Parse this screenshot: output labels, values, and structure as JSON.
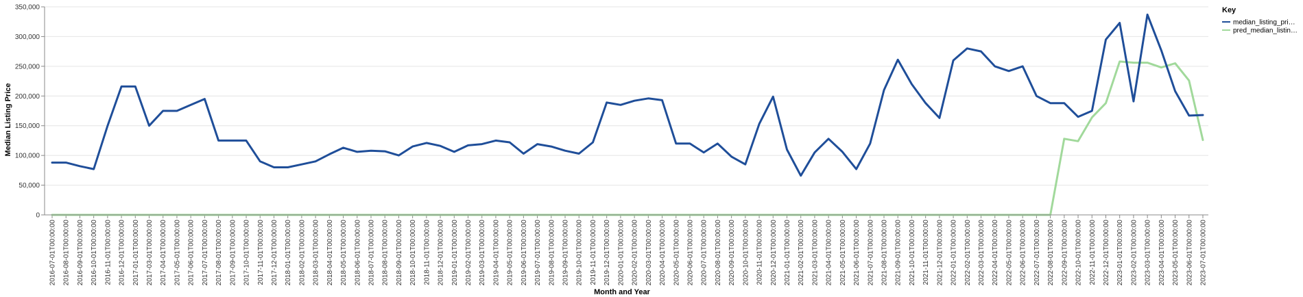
{
  "chart_data": {
    "type": "line",
    "xlabel": "Month and Year",
    "ylabel": "Median Listing Price",
    "ylim": [
      0,
      350000
    ],
    "yticks": [
      "0",
      "50,000",
      "100,000",
      "150,000",
      "200,000",
      "250,000",
      "300,000",
      "350,000"
    ],
    "grid": true,
    "legend": {
      "title": "Key",
      "placement": "top-right"
    },
    "categories": [
      "2016-07-01T00:00:00",
      "2016-08-01T00:00:00",
      "2016-09-01T00:00:00",
      "2016-10-01T00:00:00",
      "2016-11-01T00:00:00",
      "2016-12-01T00:00:00",
      "2017-01-01T00:00:00",
      "2017-03-01T00:00:00",
      "2017-04-01T00:00:00",
      "2017-05-01T00:00:00",
      "2017-06-01T00:00:00",
      "2017-07-01T00:00:00",
      "2017-08-01T00:00:00",
      "2017-09-01T00:00:00",
      "2017-10-01T00:00:00",
      "2017-11-01T00:00:00",
      "2017-12-01T00:00:00",
      "2018-01-01T00:00:00",
      "2018-02-01T00:00:00",
      "2018-03-01T00:00:00",
      "2018-04-01T00:00:00",
      "2018-05-01T00:00:00",
      "2018-06-01T00:00:00",
      "2018-07-01T00:00:00",
      "2018-08-01T00:00:00",
      "2018-09-01T00:00:00",
      "2018-10-01T00:00:00",
      "2018-11-01T00:00:00",
      "2018-12-01T00:00:00",
      "2019-01-01T00:00:00",
      "2019-02-01T00:00:00",
      "2019-03-01T00:00:00",
      "2019-04-01T00:00:00",
      "2019-05-01T00:00:00",
      "2019-06-01T00:00:00",
      "2019-07-01T00:00:00",
      "2019-08-01T00:00:00",
      "2019-09-01T00:00:00",
      "2019-10-01T00:00:00",
      "2019-11-01T00:00:00",
      "2019-12-01T00:00:00",
      "2020-01-01T00:00:00",
      "2020-02-01T00:00:00",
      "2020-03-01T00:00:00",
      "2020-04-01T00:00:00",
      "2020-05-01T00:00:00",
      "2020-06-01T00:00:00",
      "2020-07-01T00:00:00",
      "2020-08-01T00:00:00",
      "2020-09-01T00:00:00",
      "2020-10-01T00:00:00",
      "2020-11-01T00:00:00",
      "2020-12-01T00:00:00",
      "2021-01-01T00:00:00",
      "2021-02-01T00:00:00",
      "2021-03-01T00:00:00",
      "2021-04-01T00:00:00",
      "2021-05-01T00:00:00",
      "2021-06-01T00:00:00",
      "2021-07-01T00:00:00",
      "2021-08-01T00:00:00",
      "2021-09-01T00:00:00",
      "2021-10-01T00:00:00",
      "2021-11-01T00:00:00",
      "2021-12-01T00:00:00",
      "2022-01-01T00:00:00",
      "2022-02-01T00:00:00",
      "2022-03-01T00:00:00",
      "2022-04-01T00:00:00",
      "2022-05-01T00:00:00",
      "2022-06-01T00:00:00",
      "2022-07-01T00:00:00",
      "2022-08-01T00:00:00",
      "2022-09-01T00:00:00",
      "2022-10-01T00:00:00",
      "2022-11-01T00:00:00",
      "2022-12-01T00:00:00",
      "2023-01-01T00:00:00",
      "2023-02-01T00:00:00",
      "2023-03-01T00:00:00",
      "2023-04-01T00:00:00",
      "2023-05-01T00:00:00",
      "2023-06-01T00:00:00",
      "2023-07-01T00:00:00"
    ],
    "series": [
      {
        "name": "median_listing_pri…",
        "color": "#1f4e99",
        "values": [
          88000,
          88000,
          82000,
          77000,
          150000,
          216000,
          216000,
          150000,
          175000,
          175000,
          185000,
          195000,
          125000,
          125000,
          125000,
          90000,
          80000,
          80000,
          85000,
          90000,
          102000,
          113000,
          106000,
          108000,
          107000,
          100000,
          115000,
          121000,
          116000,
          106000,
          117000,
          119000,
          125000,
          122000,
          103000,
          119000,
          115000,
          108000,
          103000,
          122000,
          189000,
          185000,
          192000,
          196000,
          193000,
          120000,
          120000,
          105000,
          120000,
          98000,
          85000,
          153000,
          199000,
          110000,
          66000,
          105000,
          128000,
          106000,
          77000,
          120000,
          210000,
          261000,
          220000,
          188000,
          163000,
          260000,
          280000,
          275000,
          250000,
          242000,
          250000,
          200000,
          188000,
          188000,
          165000,
          175000,
          295000,
          323000,
          191000,
          337000,
          277000,
          208000,
          167000,
          168000
        ]
      },
      {
        "name": "pred_median_listin…",
        "color": "#a1d99b",
        "values": [
          0,
          0,
          0,
          0,
          0,
          0,
          0,
          0,
          0,
          0,
          0,
          0,
          0,
          0,
          0,
          0,
          0,
          0,
          0,
          0,
          0,
          0,
          0,
          0,
          0,
          0,
          0,
          0,
          0,
          0,
          0,
          0,
          0,
          0,
          0,
          0,
          0,
          0,
          0,
          0,
          0,
          0,
          0,
          0,
          0,
          0,
          0,
          0,
          0,
          0,
          0,
          0,
          0,
          0,
          0,
          0,
          0,
          0,
          0,
          0,
          0,
          0,
          0,
          0,
          0,
          0,
          0,
          0,
          0,
          0,
          0,
          0,
          0,
          128000,
          124000,
          164000,
          188000,
          258000,
          256000,
          256000,
          248000,
          255000,
          226000,
          126000
        ]
      }
    ]
  }
}
